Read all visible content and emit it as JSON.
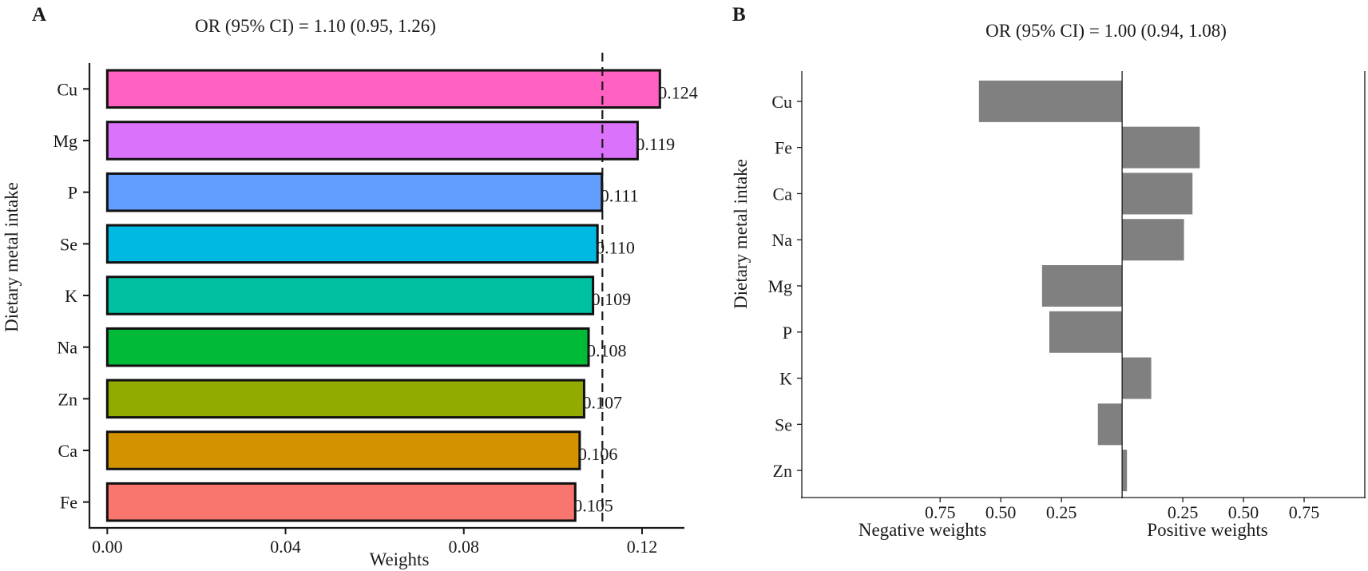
{
  "chart_data": [
    {
      "panel": "A",
      "type": "bar",
      "orientation": "horizontal",
      "title": "OR (95% CI) = 1.10 (0.95, 1.26)",
      "xlabel": "Weights",
      "ylabel": "Dietary metal intake",
      "categories": [
        "Cu",
        "Mg",
        "P",
        "Se",
        "K",
        "Na",
        "Zn",
        "Ca",
        "Fe"
      ],
      "values": [
        0.124,
        0.119,
        0.111,
        0.11,
        0.109,
        0.108,
        0.107,
        0.106,
        0.105
      ],
      "value_labels": [
        "0.124",
        "0.119",
        "0.111",
        "0.110",
        "0.109",
        "0.108",
        "0.107",
        "0.106",
        "0.105"
      ],
      "colors": [
        "#FF61C3",
        "#DB72FB",
        "#619CFF",
        "#00B9E3",
        "#00C19F",
        "#00BA38",
        "#93AA00",
        "#D39200",
        "#F8766D"
      ],
      "xticks": [
        "0.00",
        "0.04",
        "0.08",
        "0.12"
      ],
      "xtick_values": [
        0,
        0.04,
        0.08,
        0.12
      ],
      "xlim": [
        -0.004,
        0.1295
      ],
      "reference_line": 0.1111
    },
    {
      "panel": "B",
      "type": "bar",
      "orientation": "horizontal-diverging",
      "title": "OR (95% CI) = 1.00 (0.94, 1.08)",
      "ylabel": "Dietary metal intake",
      "xlabel_negative": "Negative weights",
      "xlabel_positive": "Positive weights",
      "categories": [
        "Cu",
        "Fe",
        "Ca",
        "Na",
        "Mg",
        "P",
        "K",
        "Se",
        "Zn"
      ],
      "values": [
        -0.59,
        0.32,
        0.29,
        0.255,
        -0.33,
        -0.3,
        0.12,
        -0.1,
        0.02
      ],
      "bar_color": "#808080",
      "xticks": [
        "0.75",
        "0.50",
        "0.25",
        "0.25",
        "0.50",
        "0.75"
      ],
      "xtick_values": [
        -0.75,
        -0.5,
        -0.25,
        0.25,
        0.5,
        0.75
      ],
      "xlim": [
        -1.32,
        1.0
      ]
    }
  ]
}
